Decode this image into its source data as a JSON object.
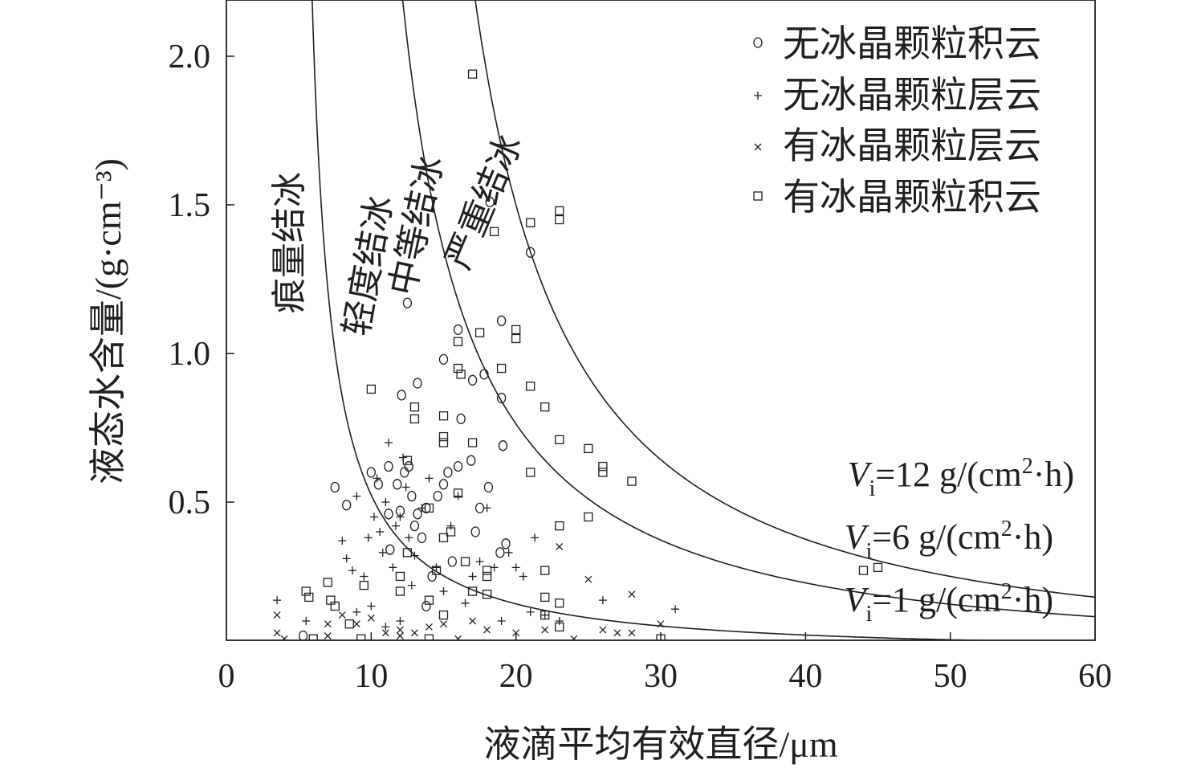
{
  "chart_data": {
    "type": "scatter",
    "title": "",
    "xlabel": "液滴平均有效直径/μm",
    "ylabel": "液态水含量/(g·cm⁻³)",
    "xlim": [
      0,
      60
    ],
    "ylim": [
      0.04,
      2.2
    ],
    "x_ticks": [
      0,
      10,
      20,
      30,
      40,
      50,
      60
    ],
    "y_ticks": [
      0.5,
      1.0,
      1.5,
      2.0
    ],
    "x_tick_labels": [
      "0",
      "10",
      "20",
      "30",
      "40",
      "50",
      "60"
    ],
    "y_tick_labels": [
      "0.5",
      "1.0",
      "1.5",
      "2.0"
    ],
    "grid": false,
    "legend_position": "top-right",
    "zones": [
      "痕量结冰",
      "轻度结冰",
      "中等结冰",
      "严重结冰"
    ],
    "curves": [
      {
        "label": "Vi=12 g/(cm²·h)",
        "label_var": "V",
        "label_sub": "i",
        "label_rest": "=12 g/(cm",
        "label_sup": "2",
        "label_end": "·h)",
        "asymptote_x": 10.0,
        "scale": 18.0
      },
      {
        "label": "Vi=6 g/(cm²·h)",
        "label_var": "V",
        "label_sub": "i",
        "label_rest": "=6 g/(cm",
        "label_sup": "2",
        "label_end": "·h)",
        "asymptote_x": 7.0,
        "scale": 12.5
      },
      {
        "label": "Vi=1 g/(cm²·h)",
        "label_var": "V",
        "label_sub": "i",
        "label_rest": "=1 g/(cm",
        "label_sup": "2",
        "label_end": "·h)",
        "asymptote_x": 4.5,
        "scale": 3.2
      }
    ],
    "series": [
      {
        "name": "无冰晶颗粒积云",
        "marker": "circle",
        "points": [
          [
            5.3,
            0.05
          ],
          [
            7.5,
            0.55
          ],
          [
            8.3,
            0.49
          ],
          [
            10.0,
            0.6
          ],
          [
            10.5,
            0.56
          ],
          [
            11.2,
            0.62
          ],
          [
            11.2,
            0.46
          ],
          [
            11.8,
            0.56
          ],
          [
            12.0,
            0.47
          ],
          [
            12.3,
            0.6
          ],
          [
            12.6,
            0.62
          ],
          [
            12.8,
            0.52
          ],
          [
            13.0,
            0.42
          ],
          [
            13.2,
            0.46
          ],
          [
            13.5,
            0.38
          ],
          [
            13.8,
            0.48
          ],
          [
            14.2,
            0.25
          ],
          [
            14.6,
            0.52
          ],
          [
            15.0,
            0.56
          ],
          [
            15.3,
            0.6
          ],
          [
            15.6,
            0.3
          ],
          [
            16.0,
            0.62
          ],
          [
            11.3,
            0.34
          ],
          [
            13.8,
            0.15
          ],
          [
            12.1,
            0.86
          ],
          [
            13.2,
            0.9
          ],
          [
            12.5,
            1.17
          ],
          [
            15.0,
            0.98
          ],
          [
            16.2,
            0.78
          ],
          [
            16.9,
            0.64
          ],
          [
            17.0,
            0.91
          ],
          [
            17.2,
            0.4
          ],
          [
            17.5,
            0.48
          ],
          [
            17.8,
            0.93
          ],
          [
            18.1,
            0.55
          ],
          [
            18.2,
            1.51
          ],
          [
            18.9,
            0.33
          ],
          [
            19.0,
            0.85
          ],
          [
            19.1,
            0.69
          ],
          [
            19.3,
            0.36
          ],
          [
            19.0,
            1.11
          ],
          [
            21.0,
            1.34
          ],
          [
            16.0,
            1.08
          ]
        ]
      },
      {
        "name": "无冰晶颗粒层云",
        "marker": "plus",
        "points": [
          [
            3.5,
            0.17
          ],
          [
            5.5,
            0.1
          ],
          [
            8.0,
            0.37
          ],
          [
            8.3,
            0.31
          ],
          [
            8.7,
            0.27
          ],
          [
            9.0,
            0.52
          ],
          [
            9.5,
            0.25
          ],
          [
            9.8,
            0.38
          ],
          [
            10.2,
            0.45
          ],
          [
            10.4,
            0.58
          ],
          [
            10.6,
            0.4
          ],
          [
            10.8,
            0.33
          ],
          [
            11.0,
            0.5
          ],
          [
            11.2,
            0.7
          ],
          [
            11.5,
            0.28
          ],
          [
            11.7,
            0.42
          ],
          [
            12.0,
            0.45
          ],
          [
            12.2,
            0.65
          ],
          [
            12.4,
            0.55
          ],
          [
            12.6,
            0.38
          ],
          [
            12.8,
            0.22
          ],
          [
            13.0,
            0.32
          ],
          [
            13.5,
            0.48
          ],
          [
            14.0,
            0.58
          ],
          [
            14.5,
            0.28
          ],
          [
            15.0,
            0.2
          ],
          [
            15.5,
            0.42
          ],
          [
            16.0,
            0.52
          ],
          [
            16.5,
            0.16
          ],
          [
            17.0,
            0.25
          ],
          [
            17.5,
            0.3
          ],
          [
            18.0,
            0.48
          ],
          [
            18.5,
            0.28
          ],
          [
            19.0,
            0.1
          ],
          [
            19.5,
            0.33
          ],
          [
            20.0,
            0.28
          ],
          [
            20.5,
            0.25
          ],
          [
            21.0,
            0.13
          ],
          [
            21.3,
            0.38
          ],
          [
            22.0,
            0.12
          ],
          [
            23.0,
            0.1
          ],
          [
            26.0,
            0.17
          ],
          [
            31.0,
            0.14
          ],
          [
            10.0,
            0.15
          ],
          [
            11.0,
            0.08
          ],
          [
            12.0,
            0.1
          ],
          [
            9.0,
            0.13
          ]
        ]
      },
      {
        "name": "有冰晶颗粒层云",
        "marker": "x",
        "points": [
          [
            3.5,
            0.12
          ],
          [
            3.5,
            0.06
          ],
          [
            4.0,
            0.04
          ],
          [
            7.0,
            0.09
          ],
          [
            7.0,
            0.05
          ],
          [
            8.0,
            0.12
          ],
          [
            9.0,
            0.09
          ],
          [
            10.0,
            0.11
          ],
          [
            11.0,
            0.06
          ],
          [
            12.0,
            0.07
          ],
          [
            12.0,
            0.05
          ],
          [
            13.0,
            0.06
          ],
          [
            14.0,
            0.08
          ],
          [
            15.0,
            0.09
          ],
          [
            16.0,
            0.04
          ],
          [
            17.0,
            0.1
          ],
          [
            18.0,
            0.07
          ],
          [
            20.0,
            0.06
          ],
          [
            22.0,
            0.07
          ],
          [
            23.0,
            0.35
          ],
          [
            25.0,
            0.24
          ],
          [
            26.0,
            0.07
          ],
          [
            27.0,
            0.06
          ],
          [
            28.0,
            0.06
          ],
          [
            28.0,
            0.19
          ],
          [
            30.0,
            0.09
          ],
          [
            24.0,
            0.04
          ]
        ]
      },
      {
        "name": "有冰晶颗粒积云",
        "marker": "square",
        "points": [
          [
            5.5,
            0.2
          ],
          [
            5.7,
            0.18
          ],
          [
            7.0,
            0.23
          ],
          [
            7.2,
            0.17
          ],
          [
            7.5,
            0.15
          ],
          [
            8.5,
            0.09
          ],
          [
            9.3,
            0.04
          ],
          [
            9.5,
            0.22
          ],
          [
            10.0,
            0.88
          ],
          [
            12.0,
            0.2
          ],
          [
            12.0,
            0.25
          ],
          [
            12.5,
            0.64
          ],
          [
            12.5,
            0.33
          ],
          [
            13.0,
            0.78
          ],
          [
            13.0,
            0.82
          ],
          [
            14.0,
            0.48
          ],
          [
            14.0,
            0.17
          ],
          [
            14.0,
            0.04
          ],
          [
            14.5,
            0.27
          ],
          [
            15.0,
            0.79
          ],
          [
            15.0,
            0.72
          ],
          [
            15.0,
            0.7
          ],
          [
            15.0,
            0.38
          ],
          [
            15.0,
            0.12
          ],
          [
            15.5,
            0.4
          ],
          [
            16.0,
            0.53
          ],
          [
            16.0,
            0.95
          ],
          [
            16.0,
            1.04
          ],
          [
            16.2,
            0.93
          ],
          [
            16.5,
            0.3
          ],
          [
            17.0,
            0.7
          ],
          [
            17.0,
            0.2
          ],
          [
            17.0,
            1.94
          ],
          [
            17.5,
            1.07
          ],
          [
            18.0,
            0.27
          ],
          [
            18.0,
            0.25
          ],
          [
            18.0,
            0.19
          ],
          [
            18.5,
            1.41
          ],
          [
            19.0,
            0.95
          ],
          [
            20.0,
            1.05
          ],
          [
            20.0,
            1.08
          ],
          [
            21.0,
            0.89
          ],
          [
            21.0,
            0.6
          ],
          [
            21.0,
            1.44
          ],
          [
            22.0,
            0.27
          ],
          [
            22.0,
            0.18
          ],
          [
            22.0,
            0.12
          ],
          [
            22.0,
            0.82
          ],
          [
            23.0,
            0.71
          ],
          [
            23.0,
            0.42
          ],
          [
            23.0,
            0.16
          ],
          [
            23.0,
            0.08
          ],
          [
            23.0,
            1.45
          ],
          [
            23.0,
            1.48
          ],
          [
            25.0,
            0.68
          ],
          [
            25.0,
            0.45
          ],
          [
            26.0,
            0.62
          ],
          [
            26.0,
            0.6
          ],
          [
            28.0,
            0.57
          ],
          [
            30.0,
            0.04
          ],
          [
            44.0,
            0.27
          ],
          [
            45.0,
            0.28
          ],
          [
            6.0,
            0.04
          ]
        ]
      }
    ]
  }
}
